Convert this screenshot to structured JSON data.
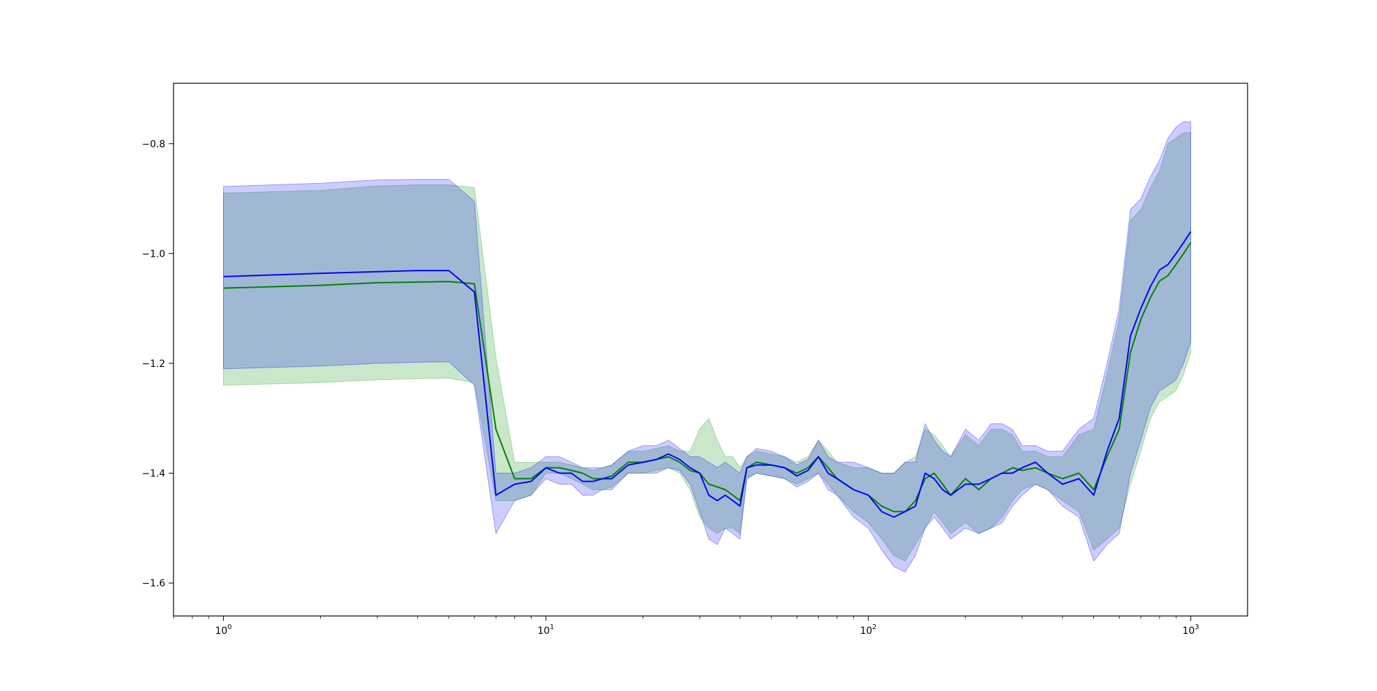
{
  "chart_data": {
    "type": "line",
    "title": "",
    "xlabel": "",
    "ylabel": "",
    "xscale": "log",
    "xlim": [
      0.7,
      1500
    ],
    "ylim": [
      -1.66,
      -0.69
    ],
    "grid": false,
    "x_ticks": [
      {
        "value": 1,
        "base": "10",
        "exp": "0"
      },
      {
        "value": 10,
        "base": "10",
        "exp": "1"
      },
      {
        "value": 100,
        "base": "10",
        "exp": "2"
      },
      {
        "value": 1000,
        "base": "10",
        "exp": "3"
      }
    ],
    "y_ticks": [
      {
        "value": -0.8,
        "label": "−0.8"
      },
      {
        "value": -1.0,
        "label": "−1.0"
      },
      {
        "value": -1.2,
        "label": "−1.2"
      },
      {
        "value": -1.4,
        "label": "−1.4"
      },
      {
        "value": -1.6,
        "label": "−1.6"
      }
    ],
    "series": [
      {
        "color": "#008000",
        "band_color": "#2ca02c",
        "band_opacity": 0.25,
        "x": [
          1,
          2,
          3,
          4,
          5,
          6,
          7,
          8,
          9,
          10,
          11,
          12,
          13,
          14,
          15,
          16,
          18,
          20,
          22,
          24,
          26,
          28,
          30,
          32,
          34,
          36,
          38,
          40,
          42,
          45,
          50,
          55,
          60,
          65,
          70,
          75,
          80,
          90,
          100,
          110,
          120,
          130,
          140,
          150,
          160,
          170,
          180,
          200,
          220,
          240,
          260,
          280,
          300,
          330,
          360,
          400,
          450,
          500,
          550,
          600,
          650,
          700,
          750,
          800,
          850,
          900,
          950,
          1000
        ],
        "y": [
          -1.063,
          -1.058,
          -1.053,
          -1.052,
          -1.051,
          -1.055,
          -1.32,
          -1.41,
          -1.41,
          -1.39,
          -1.39,
          -1.395,
          -1.4,
          -1.41,
          -1.41,
          -1.405,
          -1.38,
          -1.38,
          -1.375,
          -1.37,
          -1.38,
          -1.395,
          -1.4,
          -1.42,
          -1.425,
          -1.43,
          -1.44,
          -1.45,
          -1.39,
          -1.38,
          -1.385,
          -1.39,
          -1.4,
          -1.39,
          -1.37,
          -1.39,
          -1.41,
          -1.43,
          -1.44,
          -1.46,
          -1.47,
          -1.47,
          -1.45,
          -1.41,
          -1.4,
          -1.42,
          -1.44,
          -1.41,
          -1.43,
          -1.41,
          -1.4,
          -1.39,
          -1.395,
          -1.39,
          -1.4,
          -1.41,
          -1.4,
          -1.43,
          -1.37,
          -1.32,
          -1.18,
          -1.12,
          -1.08,
          -1.05,
          -1.04,
          -1.02,
          -1.0,
          -0.98
        ],
        "upper": [
          -0.89,
          -0.885,
          -0.877,
          -0.875,
          -0.875,
          -0.88,
          -1.19,
          -1.38,
          -1.38,
          -1.38,
          -1.38,
          -1.385,
          -1.39,
          -1.395,
          -1.39,
          -1.385,
          -1.36,
          -1.36,
          -1.355,
          -1.35,
          -1.36,
          -1.36,
          -1.32,
          -1.3,
          -1.34,
          -1.37,
          -1.37,
          -1.39,
          -1.37,
          -1.36,
          -1.365,
          -1.37,
          -1.38,
          -1.37,
          -1.34,
          -1.36,
          -1.38,
          -1.39,
          -1.39,
          -1.4,
          -1.4,
          -1.38,
          -1.37,
          -1.32,
          -1.33,
          -1.35,
          -1.37,
          -1.33,
          -1.35,
          -1.32,
          -1.32,
          -1.33,
          -1.36,
          -1.36,
          -1.37,
          -1.37,
          -1.33,
          -1.32,
          -1.22,
          -1.12,
          -0.94,
          -0.92,
          -0.88,
          -0.85,
          -0.8,
          -0.79,
          -0.78,
          -0.78
        ],
        "lower": [
          -1.24,
          -1.235,
          -1.23,
          -1.228,
          -1.227,
          -1.235,
          -1.45,
          -1.45,
          -1.44,
          -1.4,
          -1.4,
          -1.41,
          -1.42,
          -1.43,
          -1.43,
          -1.425,
          -1.4,
          -1.4,
          -1.395,
          -1.39,
          -1.4,
          -1.43,
          -1.48,
          -1.5,
          -1.51,
          -1.5,
          -1.5,
          -1.51,
          -1.41,
          -1.4,
          -1.405,
          -1.41,
          -1.42,
          -1.41,
          -1.4,
          -1.42,
          -1.44,
          -1.47,
          -1.49,
          -1.52,
          -1.55,
          -1.56,
          -1.53,
          -1.5,
          -1.47,
          -1.49,
          -1.51,
          -1.49,
          -1.51,
          -1.5,
          -1.48,
          -1.45,
          -1.43,
          -1.42,
          -1.43,
          -1.45,
          -1.47,
          -1.54,
          -1.52,
          -1.5,
          -1.42,
          -1.36,
          -1.3,
          -1.27,
          -1.26,
          -1.25,
          -1.22,
          -1.18
        ]
      },
      {
        "color": "#0000ff",
        "band_color": "#0000ff",
        "band_opacity": 0.2,
        "x": [
          1,
          2,
          3,
          4,
          5,
          6,
          7,
          8,
          9,
          10,
          11,
          12,
          13,
          14,
          15,
          16,
          18,
          20,
          22,
          24,
          26,
          28,
          30,
          32,
          34,
          36,
          38,
          40,
          42,
          45,
          50,
          55,
          60,
          65,
          70,
          75,
          80,
          90,
          100,
          110,
          120,
          130,
          140,
          150,
          160,
          170,
          180,
          200,
          220,
          240,
          260,
          280,
          300,
          330,
          360,
          400,
          450,
          500,
          550,
          600,
          650,
          700,
          750,
          800,
          850,
          900,
          950,
          1000
        ],
        "y": [
          -1.042,
          -1.036,
          -1.033,
          -1.031,
          -1.031,
          -1.07,
          -1.44,
          -1.42,
          -1.415,
          -1.39,
          -1.4,
          -1.4,
          -1.415,
          -1.415,
          -1.41,
          -1.41,
          -1.385,
          -1.38,
          -1.375,
          -1.365,
          -1.375,
          -1.39,
          -1.4,
          -1.44,
          -1.45,
          -1.44,
          -1.45,
          -1.46,
          -1.39,
          -1.385,
          -1.385,
          -1.39,
          -1.405,
          -1.395,
          -1.37,
          -1.4,
          -1.41,
          -1.43,
          -1.44,
          -1.47,
          -1.48,
          -1.47,
          -1.46,
          -1.4,
          -1.41,
          -1.43,
          -1.44,
          -1.42,
          -1.42,
          -1.41,
          -1.4,
          -1.4,
          -1.39,
          -1.38,
          -1.4,
          -1.42,
          -1.41,
          -1.44,
          -1.36,
          -1.3,
          -1.15,
          -1.1,
          -1.06,
          -1.03,
          -1.02,
          -1.0,
          -0.98,
          -0.96
        ],
        "upper": [
          -0.878,
          -0.872,
          -0.866,
          -0.865,
          -0.865,
          -0.905,
          -1.4,
          -1.4,
          -1.39,
          -1.37,
          -1.37,
          -1.38,
          -1.39,
          -1.39,
          -1.39,
          -1.385,
          -1.36,
          -1.35,
          -1.35,
          -1.34,
          -1.355,
          -1.37,
          -1.37,
          -1.38,
          -1.39,
          -1.38,
          -1.39,
          -1.4,
          -1.37,
          -1.355,
          -1.36,
          -1.37,
          -1.385,
          -1.375,
          -1.34,
          -1.37,
          -1.38,
          -1.38,
          -1.39,
          -1.4,
          -1.4,
          -1.38,
          -1.38,
          -1.31,
          -1.34,
          -1.36,
          -1.37,
          -1.32,
          -1.34,
          -1.31,
          -1.31,
          -1.32,
          -1.35,
          -1.35,
          -1.36,
          -1.36,
          -1.32,
          -1.3,
          -1.2,
          -1.1,
          -0.92,
          -0.9,
          -0.86,
          -0.83,
          -0.79,
          -0.77,
          -0.76,
          -0.76
        ],
        "lower": [
          -1.21,
          -1.205,
          -1.2,
          -1.198,
          -1.197,
          -1.24,
          -1.51,
          -1.45,
          -1.44,
          -1.41,
          -1.42,
          -1.42,
          -1.44,
          -1.44,
          -1.43,
          -1.43,
          -1.4,
          -1.4,
          -1.4,
          -1.39,
          -1.395,
          -1.42,
          -1.47,
          -1.52,
          -1.53,
          -1.5,
          -1.51,
          -1.52,
          -1.41,
          -1.4,
          -1.405,
          -1.41,
          -1.425,
          -1.415,
          -1.4,
          -1.43,
          -1.44,
          -1.48,
          -1.5,
          -1.54,
          -1.57,
          -1.58,
          -1.55,
          -1.5,
          -1.48,
          -1.5,
          -1.52,
          -1.5,
          -1.51,
          -1.5,
          -1.49,
          -1.46,
          -1.44,
          -1.42,
          -1.43,
          -1.46,
          -1.48,
          -1.56,
          -1.53,
          -1.51,
          -1.4,
          -1.34,
          -1.28,
          -1.25,
          -1.24,
          -1.23,
          -1.2,
          -1.16
        ]
      }
    ]
  }
}
